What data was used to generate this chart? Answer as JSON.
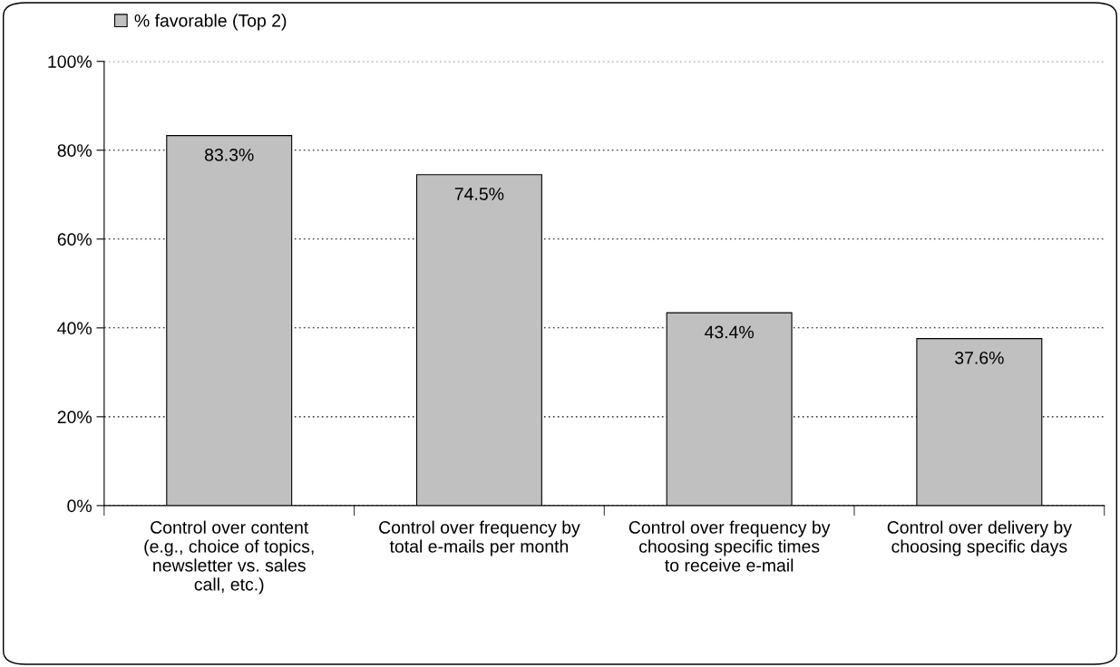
{
  "chart_data": {
    "type": "bar",
    "categories": [
      "Control over content (e.g., choice of topics, newsletter vs. sales call, etc.)",
      "Control over frequency by total e-mails per month",
      "Control over frequency by choosing specific times to receive e-mail",
      "Control over delivery by choosing specific days"
    ],
    "series": [
      {
        "name": "% favorable (Top 2)",
        "color": "#c0c0c0",
        "values": [
          83.3,
          74.5,
          43.4,
          37.6
        ]
      }
    ],
    "value_labels": [
      "83.3%",
      "74.5%",
      "43.4%",
      "37.6%"
    ],
    "ylim": [
      0,
      100
    ],
    "yticks": [
      {
        "value": 0,
        "label": "0%"
      },
      {
        "value": 20,
        "label": "20%"
      },
      {
        "value": 40,
        "label": "40%"
      },
      {
        "value": 60,
        "label": "60%"
      },
      {
        "value": 80,
        "label": "80%"
      },
      {
        "value": 100,
        "label": "100%"
      }
    ],
    "grid": "y",
    "legend": "top left"
  }
}
